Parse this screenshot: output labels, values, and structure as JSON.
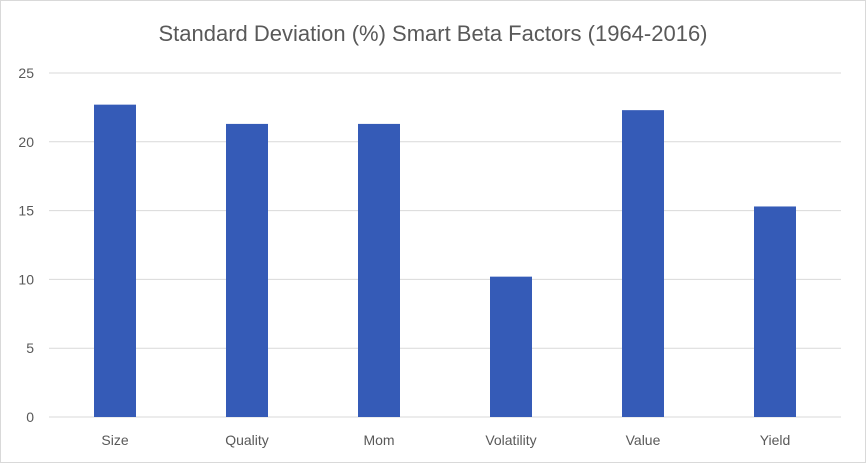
{
  "chart_data": {
    "type": "bar",
    "title": "Standard Deviation (%) Smart Beta Factors (1964-2016)",
    "categories": [
      "Size",
      "Quality",
      "Mom",
      "Volatility",
      "Value",
      "Yield"
    ],
    "values": [
      22.7,
      21.3,
      21.3,
      10.2,
      22.3,
      15.3
    ],
    "ylim": [
      0,
      25
    ],
    "yticks": [
      0,
      5,
      10,
      15,
      20,
      25
    ],
    "grid": true,
    "xlabel": "",
    "ylabel": "",
    "bar_color": "#355BB7",
    "grid_color": "#d9d9d9"
  }
}
